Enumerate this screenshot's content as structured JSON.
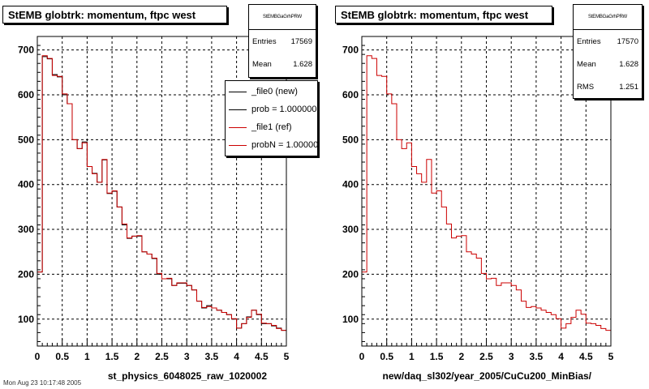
{
  "footer_text": "Mon Aug 23 10:17:48 2005",
  "colors": {
    "new": "#000000",
    "ref": "#cc0000"
  },
  "chart_data": [
    {
      "type": "line",
      "title": "StEMB globtrk: momentum, ftpc west",
      "xlabel": "st_physics_6048025_raw_1020002",
      "ylabel": "",
      "xlim": [
        0,
        5
      ],
      "ylim": [
        40,
        730
      ],
      "xticks": [
        "0",
        "0.5",
        "1",
        "1.5",
        "2",
        "2.5",
        "3",
        "3.5",
        "4",
        "4.5",
        "5"
      ],
      "yticks": [
        "100",
        "200",
        "300",
        "400",
        "500",
        "600",
        "700"
      ],
      "grid": true,
      "bin_width": 0.1,
      "stats": {
        "header": "StEMBGaGrhPRW",
        "rows": [
          {
            "label": "Entries",
            "value": "17569"
          },
          {
            "label": "Mean",
            "value": "1.628"
          }
        ]
      },
      "legend": [
        {
          "label": "_file0 (new)",
          "color": "#000000"
        },
        {
          "label": "prob = 1.000000",
          "color": "#000000"
        },
        {
          "label": "_file1 (ref)",
          "color": "#cc0000"
        },
        {
          "label": "probN = 1.000000",
          "color": "#cc0000"
        }
      ],
      "series": [
        {
          "name": "_file0 (new)",
          "color": "#000000",
          "values": [
            205,
            685,
            680,
            645,
            640,
            600,
            580,
            500,
            480,
            495,
            440,
            425,
            405,
            455,
            380,
            385,
            350,
            310,
            280,
            285,
            285,
            250,
            245,
            235,
            200,
            190,
            190,
            175,
            180,
            180,
            175,
            165,
            140,
            125,
            130,
            125,
            120,
            115,
            110,
            100,
            80,
            90,
            105,
            120,
            110,
            90,
            90,
            85,
            80,
            75
          ]
        },
        {
          "name": "_file1 (ref)",
          "color": "#cc0000",
          "values": [
            205,
            687,
            681,
            643,
            641,
            602,
            580,
            500,
            480,
            493,
            440,
            424,
            405,
            456,
            381,
            386,
            350,
            312,
            281,
            285,
            286,
            250,
            245,
            236,
            202,
            190,
            191,
            175,
            181,
            181,
            175,
            165,
            140,
            126,
            128,
            125,
            120,
            115,
            110,
            101,
            80,
            90,
            104,
            120,
            111,
            91,
            90,
            86,
            79,
            75
          ]
        }
      ]
    },
    {
      "type": "line",
      "title": "StEMB globtrk: momentum, ftpc west",
      "xlabel": "new/daq_sl302/year_2005/CuCu200_MinBias/",
      "ylabel": "",
      "xlim": [
        0,
        5
      ],
      "ylim": [
        40,
        730
      ],
      "xticks": [
        "0",
        "0.5",
        "1",
        "1.5",
        "2",
        "2.5",
        "3",
        "3.5",
        "4",
        "4.5",
        "5"
      ],
      "yticks": [
        "100",
        "200",
        "300",
        "400",
        "500",
        "600",
        "700"
      ],
      "grid": true,
      "bin_width": 0.1,
      "stats": {
        "header": "StEMBGaGrhPRW",
        "rows": [
          {
            "label": "Entries",
            "value": "17570"
          },
          {
            "label": "Mean",
            "value": "1.628"
          },
          {
            "label": "RMS",
            "value": "1.251"
          }
        ]
      },
      "series": [
        {
          "name": "",
          "color": "#cc0000",
          "values": [
            205,
            687,
            681,
            643,
            641,
            602,
            580,
            500,
            480,
            493,
            440,
            424,
            405,
            456,
            381,
            386,
            350,
            312,
            281,
            285,
            286,
            250,
            245,
            236,
            202,
            190,
            191,
            175,
            181,
            181,
            175,
            165,
            140,
            126,
            128,
            125,
            120,
            115,
            110,
            101,
            80,
            90,
            104,
            120,
            111,
            91,
            90,
            86,
            79,
            75
          ]
        }
      ]
    }
  ]
}
